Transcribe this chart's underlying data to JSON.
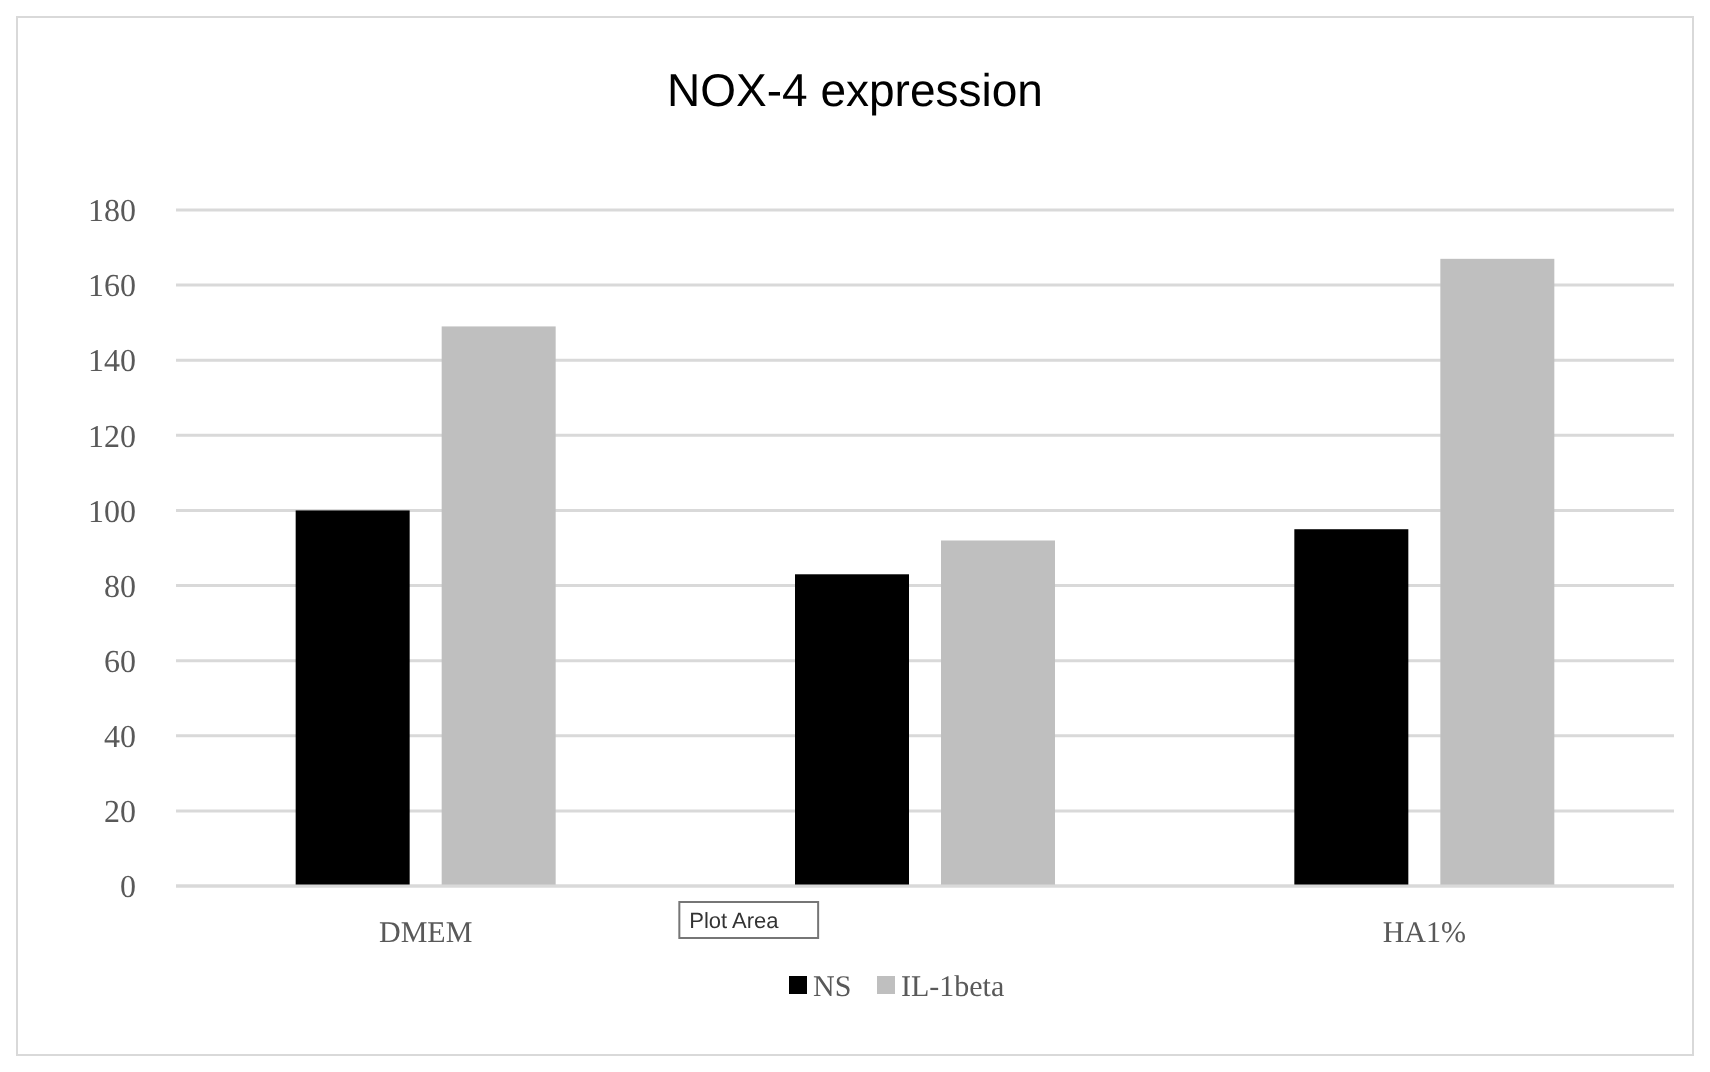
{
  "chart_data": {
    "type": "bar",
    "title": "NOX-4 expression",
    "categories": [
      "DMEM",
      null,
      "HA1%"
    ],
    "series": [
      {
        "name": "NS",
        "color": "#000000",
        "values": [
          100,
          83,
          95
        ]
      },
      {
        "name": "IL-1beta",
        "color": "#bfbfbf",
        "values": [
          149,
          92,
          167
        ]
      }
    ],
    "ylim": [
      0,
      180
    ],
    "yticks": [
      0,
      20,
      40,
      60,
      80,
      100,
      120,
      140,
      160,
      180
    ],
    "grid": "y",
    "legend": "bottom",
    "annotations": [
      "Plot Area"
    ]
  }
}
